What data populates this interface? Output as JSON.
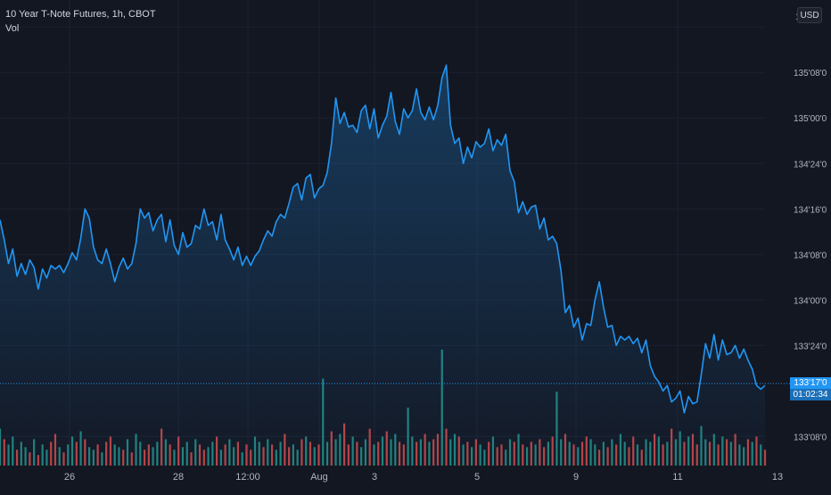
{
  "legend": {
    "symbol_line": "10 Year T-Note Futures, 1h, CBOT",
    "volume_label": "Vol"
  },
  "currency_button": "USD",
  "last_price_tag": {
    "price": "133'17'0",
    "countdown": "01:02:34"
  },
  "colors": {
    "background": "#131722",
    "line": "#2196f3",
    "grid": "#1c2030",
    "volume_up": "#26a69a",
    "volume_down": "#ef5350",
    "axis_text": "#b2b5be"
  },
  "chart_data": {
    "type": "area",
    "y_axis": {
      "ticks": [
        "133'08'0",
        "133'24'0",
        "134'00'0",
        "134'08'0",
        "134'16'0",
        "134'24'0",
        "135'00'0",
        "135'08'0",
        "13"
      ],
      "tick_values": [
        133.25,
        133.75,
        134.0,
        134.25,
        134.5,
        134.75,
        135.0,
        135.25,
        135.5
      ],
      "range": [
        133.1,
        135.55
      ],
      "position": "right"
    },
    "x_axis": {
      "ticks": [
        "26",
        "28",
        "12:00",
        "Aug",
        "3",
        "5",
        "9",
        "11",
        "13"
      ]
    },
    "grid": true,
    "series": [
      {
        "style": "area-line",
        "x": [
          0,
          1,
          2,
          3,
          4,
          5,
          6,
          7,
          8,
          9,
          10,
          11,
          12,
          13,
          14,
          15,
          16,
          17,
          18,
          19,
          20,
          21,
          22,
          23,
          24,
          25,
          26,
          27,
          28,
          29,
          30,
          31,
          32,
          33,
          34,
          35,
          36,
          37,
          38,
          39,
          40,
          41,
          42,
          43,
          44,
          45,
          46,
          47,
          48,
          49,
          50,
          51,
          52,
          53,
          54,
          55,
          56,
          57,
          58,
          59,
          60,
          61,
          62,
          63,
          64,
          65,
          66,
          67,
          68,
          69,
          70,
          71,
          72,
          73,
          74,
          75,
          76,
          77,
          78,
          79,
          80,
          81,
          82,
          83,
          84,
          85,
          86,
          87,
          88,
          89,
          90,
          91,
          92,
          93,
          94,
          95,
          96,
          97,
          98,
          99,
          100,
          101,
          102,
          103,
          104,
          105,
          106,
          107,
          108,
          109,
          110,
          111,
          112,
          113,
          114,
          115,
          116,
          117,
          118,
          119,
          120,
          121,
          122,
          123,
          124,
          125,
          126,
          127,
          128,
          129,
          130,
          131,
          132,
          133,
          134,
          135,
          136,
          137,
          138,
          139,
          140,
          141,
          142,
          143,
          144,
          145,
          146,
          147,
          148,
          149,
          150,
          151,
          152,
          153,
          154,
          155,
          156,
          157,
          158,
          159,
          160,
          161,
          162,
          163,
          164,
          165,
          166,
          167,
          168,
          169,
          170,
          171,
          172,
          173,
          174,
          175,
          176,
          177,
          178,
          179,
          180
        ],
        "values": [
          134.44,
          134.33,
          134.2,
          134.28,
          134.13,
          134.2,
          134.14,
          134.22,
          134.18,
          134.06,
          134.17,
          134.12,
          134.19,
          134.17,
          134.19,
          134.15,
          134.2,
          134.26,
          134.22,
          134.34,
          134.5,
          134.45,
          134.29,
          134.22,
          134.2,
          134.28,
          134.2,
          134.1,
          134.18,
          134.23,
          134.17,
          134.2,
          134.31,
          134.5,
          134.45,
          134.48,
          134.38,
          134.44,
          134.47,
          134.32,
          134.44,
          134.3,
          134.25,
          134.37,
          134.29,
          134.31,
          134.41,
          134.39,
          134.5,
          134.41,
          134.43,
          134.33,
          134.47,
          134.33,
          134.28,
          134.22,
          134.29,
          134.19,
          134.24,
          134.19,
          134.24,
          134.27,
          134.33,
          134.38,
          134.35,
          134.43,
          134.47,
          134.45,
          134.53,
          134.62,
          134.64,
          134.55,
          134.67,
          134.69,
          134.56,
          134.61,
          134.63,
          134.7,
          134.86,
          135.11,
          134.97,
          135.03,
          134.95,
          134.96,
          134.92,
          135.04,
          135.07,
          134.94,
          135.05,
          134.89,
          134.96,
          135.01,
          135.14,
          134.98,
          134.91,
          135.05,
          135.0,
          135.04,
          135.16,
          135.03,
          134.99,
          135.06,
          134.99,
          135.07,
          135.22,
          135.29,
          134.96,
          134.86,
          134.89,
          134.75,
          134.84,
          134.78,
          134.87,
          134.84,
          134.86,
          134.94,
          134.82,
          134.88,
          134.85,
          134.91,
          134.71,
          134.65,
          134.48,
          134.54,
          134.47,
          134.51,
          134.52,
          134.39,
          134.45,
          134.33,
          134.35,
          134.31,
          134.16,
          133.93,
          133.97,
          133.85,
          133.9,
          133.78,
          133.87,
          133.86,
          134.0,
          134.1,
          133.96,
          133.85,
          133.86,
          133.75,
          133.8,
          133.78,
          133.8,
          133.76,
          133.79,
          133.71,
          133.78,
          133.64,
          133.58,
          133.55,
          133.5,
          133.53,
          133.44,
          133.46,
          133.5,
          133.38,
          133.47,
          133.43,
          133.44,
          133.59,
          133.76,
          133.68,
          133.81,
          133.67,
          133.78,
          133.7,
          133.71,
          133.75,
          133.68,
          133.73,
          133.67,
          133.62,
          133.53,
          133.51,
          133.53
        ]
      },
      {
        "name": "Vol",
        "style": "volume-bars",
        "up_flags": [
          1,
          0,
          1,
          1,
          0,
          1,
          1,
          0,
          1,
          0,
          1,
          1,
          0,
          0,
          1,
          0,
          1,
          1,
          0,
          1,
          0,
          1,
          1,
          0,
          1,
          0,
          0,
          1,
          1,
          0,
          1,
          0,
          1,
          1,
          0,
          0,
          1,
          1,
          0,
          1,
          0,
          1,
          0,
          1,
          1,
          0,
          1,
          0,
          0,
          1,
          1,
          0,
          1,
          0,
          1,
          1,
          0,
          1,
          0,
          0,
          1,
          1,
          0,
          1,
          0,
          1,
          1,
          0,
          0,
          1,
          1,
          0,
          1,
          0,
          1,
          0,
          1,
          1,
          0,
          1,
          1,
          0,
          0,
          1,
          0,
          1,
          1,
          0,
          1,
          0,
          1,
          0,
          1,
          1,
          0,
          0,
          1,
          1,
          0,
          1,
          0,
          1,
          0,
          0,
          1,
          0,
          1,
          1,
          0,
          1,
          0,
          1,
          0,
          1,
          1,
          0,
          1,
          0,
          0,
          1,
          1,
          0,
          1,
          0,
          1,
          0,
          1,
          0,
          0,
          1,
          0,
          1,
          1,
          0,
          1,
          0,
          1,
          0,
          0,
          1,
          1,
          0,
          1,
          0,
          1,
          0,
          1,
          1,
          0,
          0,
          1,
          0,
          1,
          1,
          0,
          1,
          0,
          1,
          0,
          1,
          1,
          0,
          1,
          0,
          0,
          1,
          1,
          0,
          1,
          0,
          1,
          0,
          1,
          0,
          1,
          1,
          0,
          1,
          0,
          1,
          0
        ],
        "values": [
          14,
          10,
          8,
          11,
          6,
          9,
          7,
          5,
          10,
          4,
          8,
          6,
          9,
          12,
          7,
          5,
          8,
          11,
          9,
          13,
          10,
          7,
          6,
          8,
          5,
          9,
          11,
          8,
          7,
          6,
          10,
          5,
          12,
          9,
          6,
          8,
          7,
          9,
          14,
          10,
          8,
          6,
          11,
          7,
          9,
          5,
          10,
          8,
          6,
          7,
          9,
          11,
          6,
          8,
          10,
          7,
          9,
          5,
          8,
          6,
          11,
          9,
          7,
          10,
          8,
          6,
          9,
          12,
          7,
          8,
          6,
          10,
          11,
          9,
          7,
          8,
          33,
          9,
          13,
          10,
          12,
          16,
          8,
          11,
          9,
          7,
          10,
          14,
          8,
          9,
          11,
          13,
          10,
          12,
          9,
          8,
          22,
          11,
          9,
          10,
          12,
          9,
          10,
          12,
          44,
          14,
          10,
          12,
          11,
          8,
          9,
          7,
          10,
          8,
          6,
          9,
          11,
          7,
          8,
          6,
          10,
          9,
          12,
          8,
          7,
          9,
          8,
          10,
          7,
          9,
          11,
          28,
          10,
          12,
          9,
          8,
          7,
          9,
          11,
          10,
          8,
          6,
          9,
          7,
          10,
          8,
          12,
          9,
          7,
          11,
          8,
          6,
          10,
          9,
          12,
          11,
          8,
          9,
          14,
          10,
          13,
          9,
          11,
          12,
          8,
          15,
          10,
          9,
          12,
          8,
          11,
          10,
          9,
          12,
          8,
          7,
          10,
          9,
          11,
          8,
          6
        ]
      }
    ]
  }
}
